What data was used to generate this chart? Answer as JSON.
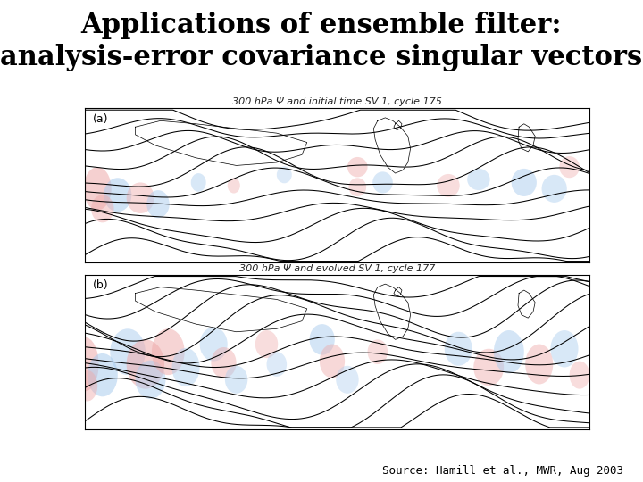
{
  "title_line1": "Applications of ensemble filter:",
  "title_line2": "analysis-error covariance singular vectors",
  "title_fontsize": 22,
  "title_weight": "bold",
  "title_color": "#000000",
  "background_color": "#ffffff",
  "panel_a_label": "(a)",
  "panel_b_label": "(b)",
  "panel_a_subtitle": "300 hPa Ψ and initial time SV 1, cycle 175",
  "panel_b_subtitle": "300 hPa Ψ and evolved SV 1, cycle 177",
  "source_text": "Source: Hamill et al., MWR, Aug 2003",
  "source_fontsize": 9,
  "panel_title_fontsize": 8,
  "panel_label_fontsize": 9,
  "fig_width": 7.2,
  "fig_height": 5.4,
  "dpi": 100,
  "map_bg": "#ffffff",
  "blue_color": "#aaccee",
  "red_color": "#eeaaaa",
  "red_dark": "#cc6666",
  "blue_dark": "#6699cc"
}
